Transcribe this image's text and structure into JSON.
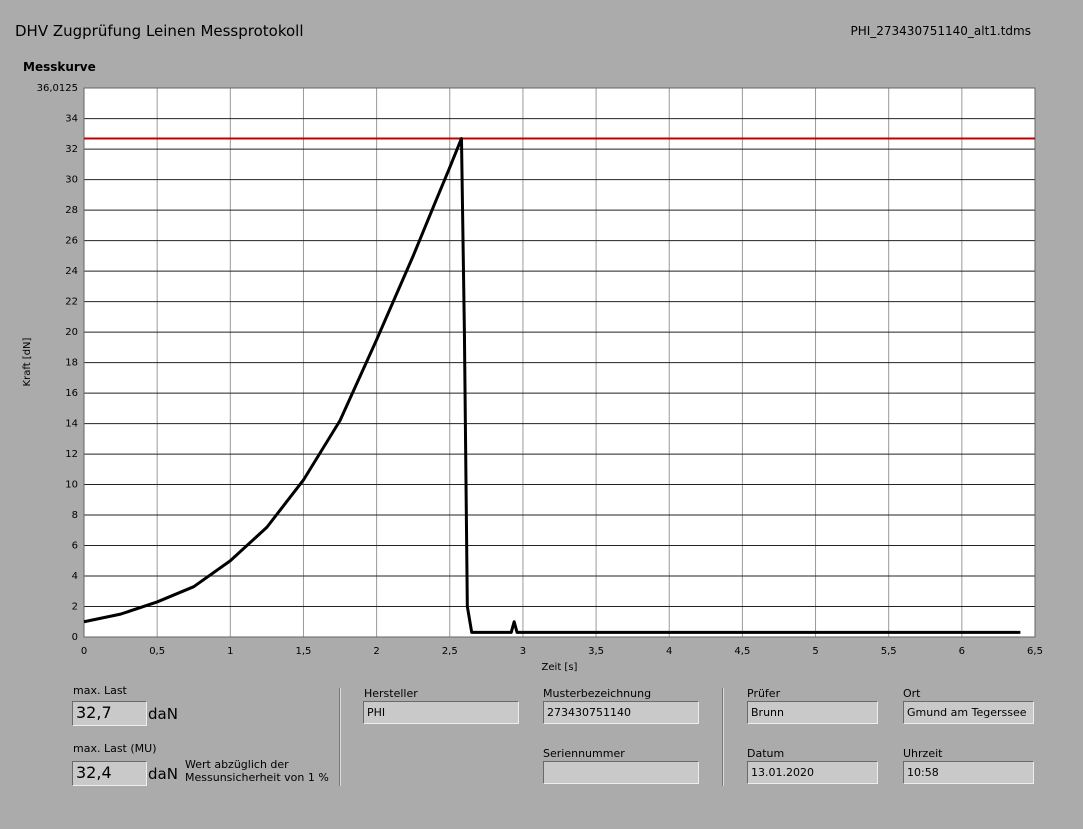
{
  "header": {
    "title": "DHV Zugprüfung Leinen Messprotokoll",
    "file": "PHI_273430751140_alt1.tdms"
  },
  "chart_data": {
    "type": "line",
    "title": "Messkurve",
    "x_label": "Zeit [s]",
    "y_label": "Kraft [dN]",
    "x": [
      0,
      0.25,
      0.5,
      0.75,
      1,
      1.25,
      1.5,
      1.75,
      2,
      2.25,
      2.4,
      2.5,
      2.58,
      2.6,
      2.62,
      2.65,
      2.92,
      2.94,
      2.96,
      6.4
    ],
    "values": [
      1,
      1.5,
      2.3,
      3.3,
      5,
      7.2,
      10.3,
      14.2,
      19.5,
      25,
      28.5,
      30.8,
      32.7,
      20,
      2,
      0.3,
      0.3,
      1,
      0.3,
      0.3
    ],
    "color": "#000000",
    "max_line": {
      "value": 32.7,
      "color": "#c00000"
    },
    "xlim": [
      0,
      6.5
    ],
    "xticks": [
      0,
      {
        "value": 0.5,
        "label": "0,5"
      },
      1,
      {
        "value": 1.5,
        "label": "1,5"
      },
      2,
      {
        "value": 2.5,
        "label": "2,5"
      },
      3,
      {
        "value": 3.5,
        "label": "3,5"
      },
      4,
      {
        "value": 4.5,
        "label": "4,5"
      },
      5,
      {
        "value": 5.5,
        "label": "5,5"
      },
      6,
      {
        "value": 6.5,
        "label": "6,5"
      }
    ],
    "ylim": [
      0,
      36.0125
    ],
    "yticks": [
      0,
      2,
      4,
      6,
      8,
      10,
      12,
      14,
      16,
      18,
      20,
      22,
      24,
      26,
      28,
      30,
      32,
      34,
      {
        "value": 36.0125,
        "label": "36,0125"
      }
    ],
    "grid": true
  },
  "results": {
    "max_label": "max. Last",
    "max_value": "32,7",
    "max_unit": "daN",
    "mu_label": "max. Last (MU)",
    "mu_value": "32,4",
    "mu_unit": "daN",
    "mu_note": "Wert abzüglich der Messunsicherheit von 1 %"
  },
  "fields": {
    "hersteller_label": "Hersteller",
    "hersteller": "PHI",
    "muster_label": "Musterbezeichnung",
    "muster": "273430751140",
    "serien_label": "Seriennummer",
    "pruefer_label": "Prüfer",
    "pruefer": "Brunn",
    "ort_label": "Ort",
    "ort": "Gmund am Tegerssee",
    "datum_label": "Datum",
    "datum": "13.01.2020",
    "uhrzeit_label": "Uhrzeit",
    "uhrzeit": "10:58"
  }
}
